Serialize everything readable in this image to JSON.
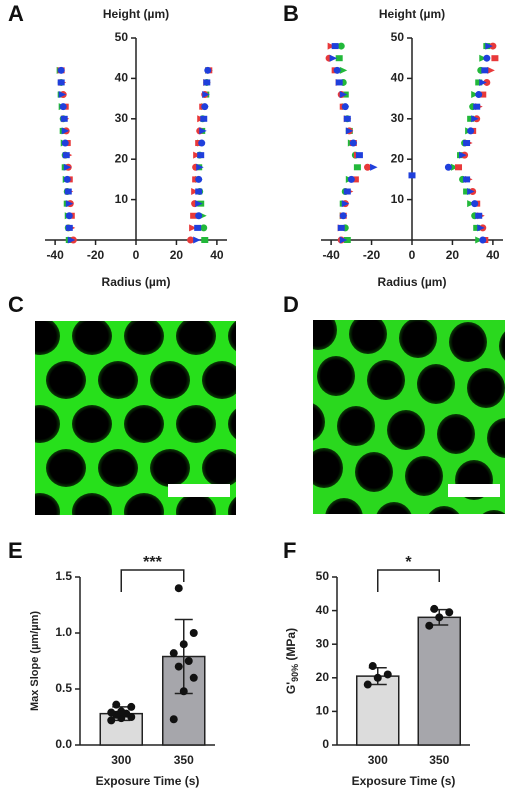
{
  "chart_data": [
    {
      "type": "scatter",
      "panel": "A",
      "title": "Height (µm)",
      "xlabel": "Radius (µm)",
      "xlim": [
        -45,
        45
      ],
      "ylim": [
        0,
        50
      ],
      "xticks": [
        -40,
        -20,
        0,
        20,
        40
      ],
      "yticks": [
        10,
        20,
        30,
        40,
        50
      ],
      "series": [
        {
          "color": "#22b83a",
          "x": [
            -33,
            -33.5,
            -33.5,
            -34,
            -34,
            -34.5,
            -35,
            -35,
            -35.5,
            -36,
            -36,
            -36.5,
            -37,
            -37,
            -37.5,
            34,
            33.5,
            33,
            32,
            31.5,
            31,
            31,
            31.5,
            32,
            32.5,
            33,
            34,
            34.5,
            35,
            36
          ],
          "y": [
            0,
            3,
            6,
            9,
            12,
            15,
            18,
            21,
            24,
            27,
            30,
            33,
            36,
            39,
            42,
            0,
            3,
            6,
            9,
            12,
            15,
            18,
            21,
            24,
            27,
            30,
            33,
            36,
            39,
            42
          ]
        },
        {
          "color": "#e8393a",
          "x": [
            -31,
            -32,
            -32,
            -32.5,
            -33,
            -33,
            -33.5,
            -33.5,
            -34,
            -34.5,
            -35,
            -35,
            -36,
            -36.5,
            -37,
            27,
            28,
            28.5,
            29,
            29,
            29.5,
            29.5,
            30,
            31,
            31.5,
            32,
            33,
            34,
            35,
            36
          ],
          "y": [
            0,
            3,
            6,
            9,
            12,
            15,
            18,
            21,
            24,
            27,
            30,
            33,
            36,
            39,
            42,
            0,
            3,
            6,
            9,
            12,
            15,
            18,
            21,
            24,
            27,
            30,
            33,
            36,
            39,
            42
          ]
        },
        {
          "color": "#1f3fdc",
          "x": [
            -32,
            -33,
            -33,
            -33,
            -33.5,
            -34,
            -34,
            -34.5,
            -35,
            -35,
            -35.5,
            -36,
            -36.5,
            -37,
            -37,
            30,
            30.5,
            31,
            31,
            31,
            31,
            31.5,
            32,
            32.5,
            33,
            33.5,
            34,
            34.5,
            35,
            35.5
          ],
          "y": [
            0,
            3,
            6,
            9,
            12,
            15,
            18,
            21,
            24,
            27,
            30,
            33,
            36,
            39,
            42,
            0,
            3,
            6,
            9,
            12,
            15,
            18,
            21,
            24,
            27,
            30,
            33,
            36,
            39,
            42
          ]
        }
      ]
    },
    {
      "type": "scatter",
      "panel": "B",
      "title": "Height (µm)",
      "xlabel": "Radius (µm)",
      "xlim": [
        -45,
        45
      ],
      "ylim": [
        0,
        50
      ],
      "xticks": [
        -40,
        -20,
        0,
        20,
        40
      ],
      "yticks": [
        10,
        20,
        30,
        40,
        50
      ],
      "series": [
        {
          "color": "#22b83a",
          "x": [
            -32,
            -33,
            -34,
            -34,
            -33,
            -31,
            -27,
            -28,
            -30,
            -31,
            -32,
            -33,
            -33,
            -34,
            -34,
            -36,
            -35,
            33,
            32,
            31,
            29,
            27,
            25,
            21,
            24,
            26,
            28,
            29,
            30,
            31,
            33,
            34,
            35,
            37
          ],
          "y": [
            0,
            3,
            6,
            9,
            12,
            15,
            18,
            21,
            24,
            27,
            30,
            33,
            36,
            39,
            42,
            45,
            48,
            0,
            3,
            6,
            9,
            12,
            15,
            18,
            21,
            24,
            27,
            30,
            33,
            36,
            39,
            42,
            45,
            48
          ]
        },
        {
          "color": "#e8393a",
          "x": [
            -35,
            -35,
            -34,
            -33,
            -31,
            -28,
            -22,
            -27,
            -29,
            -31,
            -32,
            -34,
            -35,
            -36,
            -38,
            -41,
            -40,
            36,
            35,
            34,
            32,
            30,
            28,
            23,
            26,
            28,
            30,
            32,
            33,
            35,
            37,
            39,
            41,
            40
          ],
          "y": [
            0,
            3,
            6,
            9,
            12,
            15,
            18,
            21,
            24,
            27,
            30,
            33,
            36,
            39,
            42,
            45,
            48,
            0,
            3,
            6,
            9,
            12,
            15,
            18,
            21,
            24,
            27,
            30,
            33,
            36,
            39,
            42,
            45,
            48
          ]
        },
        {
          "color": "#1f3fdc",
          "x": [
            -34,
            -35,
            -34,
            -33,
            -32,
            -30,
            -19,
            -26,
            -29,
            -31,
            -32,
            -33,
            -34,
            -36,
            -37,
            -39,
            -38,
            35,
            34,
            33,
            31,
            29,
            27,
            18,
            25,
            27,
            29,
            31,
            32,
            33,
            35,
            36,
            37,
            38,
            0
          ],
          "y": [
            0,
            3,
            6,
            9,
            12,
            15,
            18,
            21,
            24,
            27,
            30,
            33,
            36,
            39,
            42,
            45,
            48,
            0,
            3,
            6,
            9,
            12,
            15,
            18,
            21,
            24,
            27,
            30,
            33,
            36,
            39,
            42,
            45,
            48,
            16
          ]
        }
      ]
    },
    {
      "type": "bar",
      "panel": "E",
      "ylabel": "Max Slope (µm/µm)",
      "xlabel": "Exposure Time (s)",
      "categories": [
        "300",
        "350"
      ],
      "values": [
        0.28,
        0.79
      ],
      "errors": [
        0.06,
        0.33
      ],
      "colors": [
        "#dcdcdc",
        "#a6a6ab"
      ],
      "points": [
        [
          0.22,
          0.24,
          0.25,
          0.27,
          0.28,
          0.29,
          0.3,
          0.34,
          0.36
        ],
        [
          0.23,
          0.48,
          0.6,
          0.7,
          0.75,
          0.82,
          0.9,
          1.0,
          1.4
        ]
      ],
      "ylim": [
        0,
        1.5
      ],
      "yticks": [
        {
          "value": 0,
          "label": "0.0"
        },
        {
          "value": 0.5,
          "label": "0.5"
        },
        {
          "value": 1,
          "label": "1.0"
        },
        {
          "value": 1.5,
          "label": "1.5"
        }
      ],
      "significance": "***"
    },
    {
      "type": "bar",
      "panel": "F",
      "ylabel": {
        "main": "G'",
        "sub": "90%",
        "unit": " (MPa)"
      },
      "xlabel": "Exposure Time (s)",
      "categories": [
        "300",
        "350"
      ],
      "values": [
        20.5,
        38
      ],
      "errors": [
        2.5,
        2.3
      ],
      "colors": [
        "#dcdcdc",
        "#a6a6ab"
      ],
      "points": [
        [
          18,
          20,
          21,
          23.5
        ],
        [
          35.5,
          38,
          39.5,
          40.5
        ]
      ],
      "ylim": [
        0,
        50
      ],
      "yticks": [
        0,
        10,
        20,
        30,
        40,
        50
      ],
      "significance": "*"
    }
  ],
  "image_panels": [
    {
      "panel": "C"
    },
    {
      "panel": "D"
    }
  ]
}
